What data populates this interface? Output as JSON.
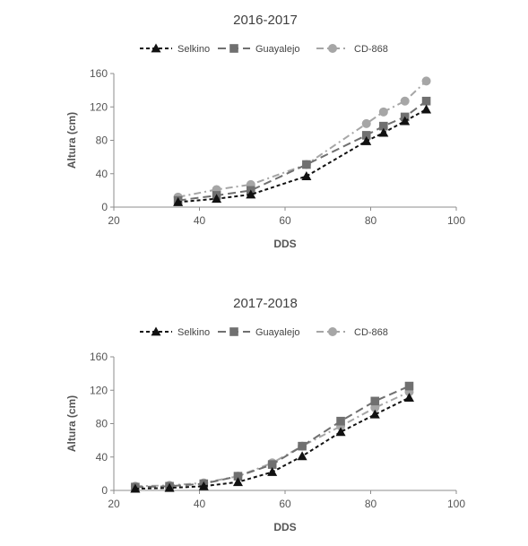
{
  "chart_data": [
    {
      "type": "line",
      "title": "2016-2017",
      "xlabel": "DDS",
      "ylabel": "Altura  (cm)",
      "xlim": [
        20,
        100
      ],
      "ylim": [
        0,
        160
      ],
      "xticks": [
        20,
        40,
        60,
        80,
        100
      ],
      "yticks": [
        0,
        40,
        80,
        120,
        160
      ],
      "grid": false,
      "legend_position": "top",
      "series": [
        {
          "name": "Selkino",
          "marker": "triangle",
          "dash": "dashed",
          "color": "#111111",
          "x": [
            35,
            44,
            52,
            65,
            79,
            83,
            88,
            93
          ],
          "y": [
            6,
            10,
            15,
            37,
            79,
            89,
            103,
            117
          ]
        },
        {
          "name": "Guayalejo",
          "marker": "square",
          "dash": "long-dash",
          "color": "#707070",
          "x": [
            35,
            44,
            52,
            65,
            79,
            83,
            88,
            93
          ],
          "y": [
            8,
            14,
            20,
            51,
            86,
            97,
            108,
            127
          ]
        },
        {
          "name": "CD-868",
          "marker": "circle",
          "dash": "dash-dot",
          "color": "#a6a6a6",
          "x": [
            35,
            44,
            52,
            65,
            79,
            83,
            88,
            93
          ],
          "y": [
            12,
            21,
            27,
            51,
            100,
            114,
            127,
            151
          ]
        }
      ]
    },
    {
      "type": "line",
      "title": "2017-2018",
      "xlabel": "DDS",
      "ylabel": "Altura  (cm)",
      "xlim": [
        20,
        100
      ],
      "ylim": [
        0,
        160
      ],
      "xticks": [
        20,
        40,
        60,
        80,
        100
      ],
      "yticks": [
        0,
        40,
        80,
        120,
        160
      ],
      "grid": false,
      "legend_position": "top",
      "series": [
        {
          "name": "Selkino",
          "marker": "triangle",
          "dash": "dashed",
          "color": "#111111",
          "x": [
            25,
            33,
            41,
            49,
            57,
            64,
            73,
            81,
            89
          ],
          "y": [
            2,
            3,
            5,
            10,
            22,
            41,
            70,
            91,
            111
          ]
        },
        {
          "name": "Guayalejo",
          "marker": "square",
          "dash": "long-dash",
          "color": "#707070",
          "x": [
            25,
            33,
            41,
            49,
            57,
            64,
            73,
            81,
            89
          ],
          "y": [
            4,
            5,
            8,
            17,
            31,
            53,
            83,
            107,
            125
          ]
        },
        {
          "name": "CD-868",
          "marker": "circle",
          "dash": "dash-dot",
          "color": "#a6a6a6",
          "x": [
            25,
            33,
            41,
            49,
            57,
            64,
            73,
            81,
            89
          ],
          "y": [
            5,
            6,
            9,
            17,
            33,
            53,
            77,
            99,
            118
          ]
        }
      ]
    }
  ]
}
